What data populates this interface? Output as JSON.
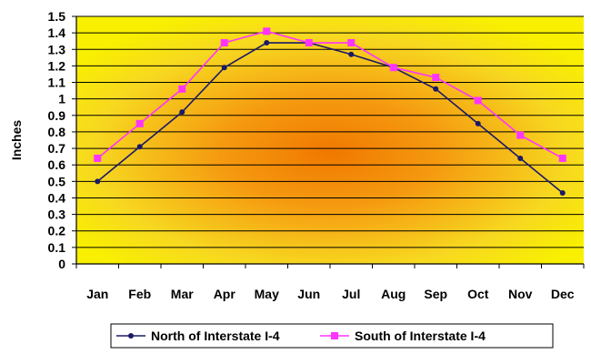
{
  "chart_data": {
    "type": "line",
    "title": "",
    "xlabel": "",
    "ylabel": "Inches",
    "ylim": [
      0,
      1.5
    ],
    "ytick_step": 0.1,
    "yticks": [
      "0",
      "0.1",
      "0.2",
      "0.3",
      "0.4",
      "0.5",
      "0.6",
      "0.7",
      "0.8",
      "0.9",
      "1",
      "1.1",
      "1.2",
      "1.3",
      "1.4",
      "1.5"
    ],
    "categories": [
      "Jan",
      "Feb",
      "Mar",
      "Apr",
      "May",
      "Jun",
      "Jul",
      "Aug",
      "Sep",
      "Oct",
      "Nov",
      "Dec"
    ],
    "grid": true,
    "legend_position": "bottom",
    "series": [
      {
        "name": "North of Interstate I-4",
        "color": "#1a1a66",
        "marker": "circle",
        "values": [
          0.5,
          0.71,
          0.92,
          1.19,
          1.34,
          1.34,
          1.27,
          1.19,
          1.06,
          0.85,
          0.64,
          0.43
        ]
      },
      {
        "name": "South of Interstate I-4",
        "color": "#ff33ff",
        "marker": "square",
        "values": [
          0.64,
          0.85,
          1.06,
          1.34,
          1.41,
          1.34,
          1.34,
          1.19,
          1.13,
          0.99,
          0.78,
          0.64
        ]
      }
    ]
  }
}
